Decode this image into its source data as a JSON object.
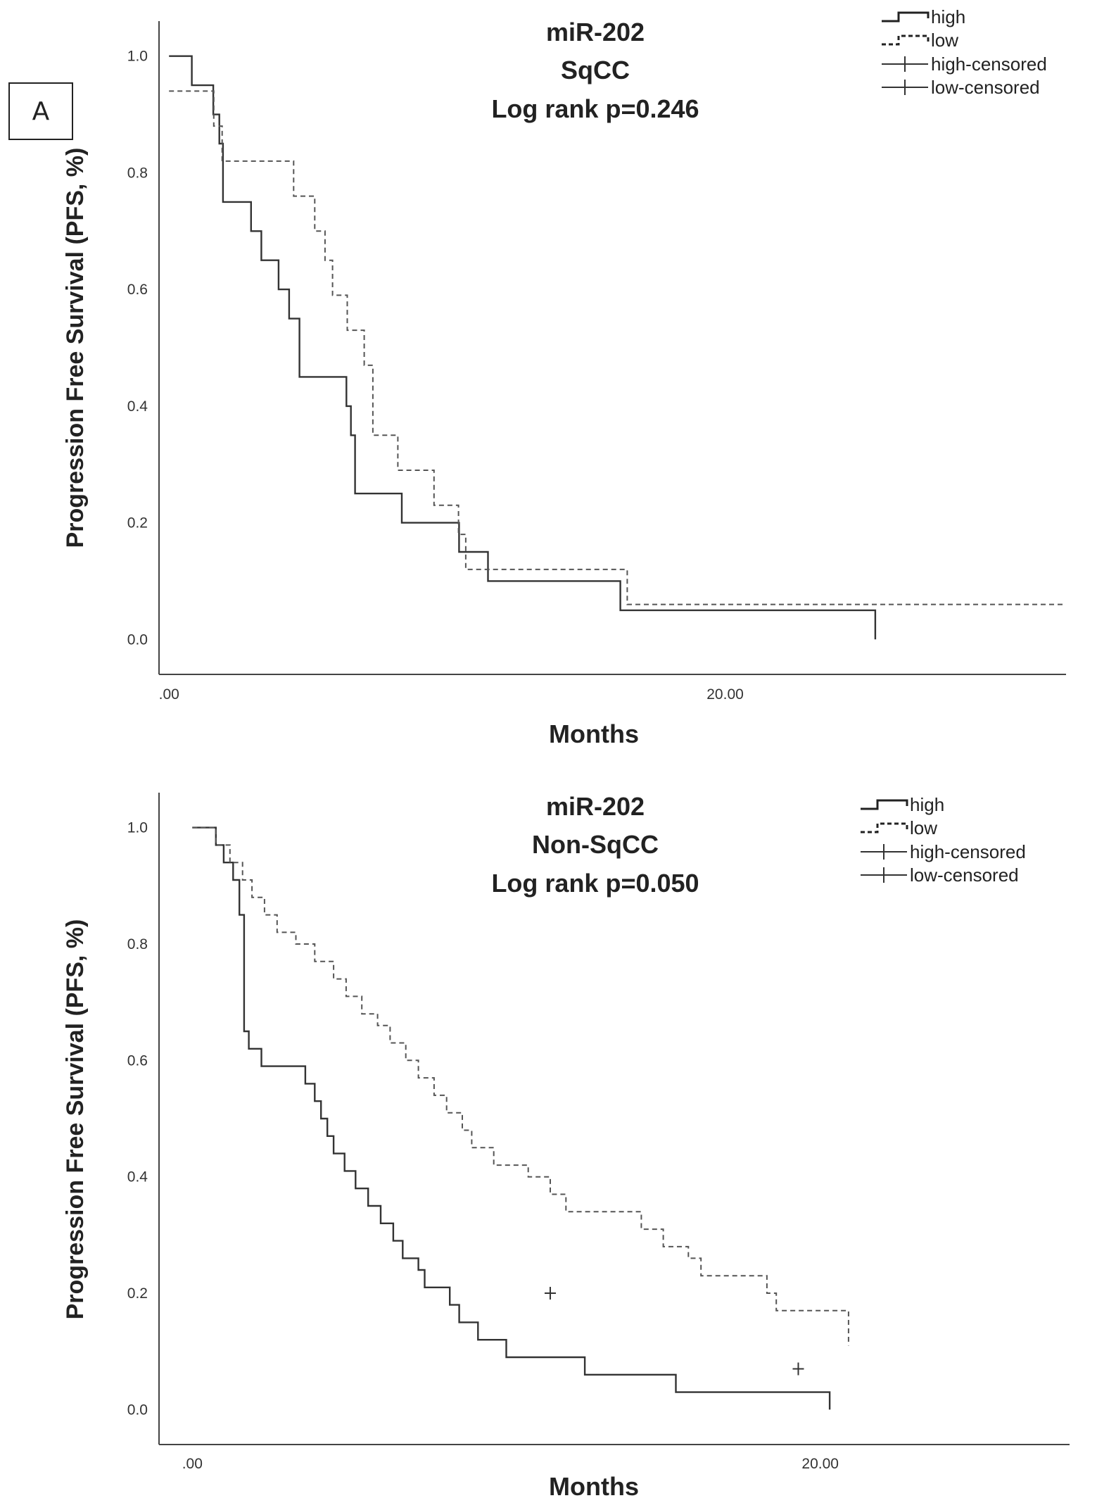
{
  "panel_label": "A",
  "chart_data": [
    {
      "type": "line",
      "subtype": "kaplan-meier",
      "title_lines": [
        "miR-202",
        "SqCC",
        "Log rank p=0.246"
      ],
      "xlabel": "Months",
      "ylabel": "Progression Free Survival (PFS, %)",
      "xlim": [
        -0.36,
        32.26
      ],
      "ylim": [
        -0.06,
        1.06
      ],
      "x_ticks": [
        {
          "value": 0,
          "label": ".00"
        },
        {
          "value": 20,
          "label": "20.00"
        }
      ],
      "y_ticks": [
        {
          "value": 0.0,
          "label": "0.0"
        },
        {
          "value": 0.2,
          "label": "0.2"
        },
        {
          "value": 0.4,
          "label": "0.4"
        },
        {
          "value": 0.6,
          "label": "0.6"
        },
        {
          "value": 0.8,
          "label": "0.8"
        },
        {
          "value": 1.0,
          "label": "1.0"
        }
      ],
      "legend": [
        {
          "label": "high",
          "style": "solid"
        },
        {
          "label": "low",
          "style": "dashed"
        },
        {
          "label": "high-censored",
          "style": "censor"
        },
        {
          "label": "low-censored",
          "style": "censor"
        }
      ],
      "legend_position": "top-right",
      "series": [
        {
          "name": "high",
          "style": "solid",
          "x": [
            0,
            0.82,
            1.59,
            1.81,
            1.94,
            2.95,
            3.32,
            3.94,
            4.32,
            4.69,
            6.38,
            6.54,
            6.69,
            8.37,
            9.41,
            10.43,
            11.47,
            16.23,
            25.4,
            25.4
          ],
          "y": [
            1.0,
            0.95,
            0.9,
            0.85,
            0.75,
            0.7,
            0.65,
            0.6,
            0.55,
            0.45,
            0.4,
            0.35,
            0.25,
            0.2,
            0.2,
            0.15,
            0.1,
            0.05,
            0.05,
            0.0
          ]
        },
        {
          "name": "low",
          "style": "dashed",
          "x": [
            0,
            1.61,
            1.91,
            4.48,
            5.24,
            5.61,
            5.88,
            6.41,
            7.02,
            7.33,
            8.23,
            9.53,
            10.41,
            10.67,
            16.48,
            32.2
          ],
          "y": [
            0.94,
            0.88,
            0.82,
            0.76,
            0.7,
            0.65,
            0.59,
            0.53,
            0.47,
            0.35,
            0.29,
            0.23,
            0.18,
            0.12,
            0.06,
            0.06
          ]
        }
      ],
      "censored": []
    },
    {
      "type": "line",
      "subtype": "kaplan-meier",
      "title_lines": [
        "miR-202",
        "Non-SqCC",
        "Log rank p=0.050"
      ],
      "xlabel": "Months",
      "ylabel": "Progression Free Survival (PFS, %)",
      "xlim": [
        -1.06,
        27.94
      ],
      "ylim": [
        -0.06,
        1.06
      ],
      "x_ticks": [
        {
          "value": 0,
          "label": ".00"
        },
        {
          "value": 20,
          "label": "20.00"
        }
      ],
      "y_ticks": [
        {
          "value": 0.0,
          "label": "0.0"
        },
        {
          "value": 0.2,
          "label": "0.2"
        },
        {
          "value": 0.4,
          "label": "0.4"
        },
        {
          "value": 0.6,
          "label": "0.6"
        },
        {
          "value": 0.8,
          "label": "0.8"
        },
        {
          "value": 1.0,
          "label": "1.0"
        }
      ],
      "legend": [
        {
          "label": "high",
          "style": "solid"
        },
        {
          "label": "low",
          "style": "dashed"
        },
        {
          "label": "high-censored",
          "style": "censor"
        },
        {
          "label": "low-censored",
          "style": "censor"
        }
      ],
      "legend_position": "top-right",
      "series": [
        {
          "name": "high",
          "style": "solid",
          "x": [
            0,
            0.75,
            1.0,
            1.3,
            1.5,
            1.65,
            1.8,
            2.2,
            3.6,
            3.9,
            4.1,
            4.3,
            4.5,
            4.85,
            5.2,
            5.6,
            6.0,
            6.4,
            6.7,
            7.2,
            7.4,
            8.2,
            8.5,
            9.1,
            10.0,
            11.5,
            12.5,
            15.4,
            20.3,
            20.3
          ],
          "y": [
            1.0,
            0.97,
            0.94,
            0.91,
            0.85,
            0.65,
            0.62,
            0.59,
            0.56,
            0.53,
            0.5,
            0.47,
            0.44,
            0.41,
            0.38,
            0.35,
            0.32,
            0.29,
            0.26,
            0.24,
            0.21,
            0.18,
            0.15,
            0.12,
            0.09,
            0.09,
            0.06,
            0.03,
            0.03,
            0.0
          ]
        },
        {
          "name": "low",
          "style": "dashed",
          "x": [
            0,
            0.75,
            1.2,
            1.6,
            1.9,
            2.3,
            2.7,
            3.3,
            3.9,
            4.5,
            4.9,
            5.4,
            5.9,
            6.3,
            6.8,
            7.2,
            7.7,
            8.1,
            8.6,
            8.9,
            9.6,
            10.7,
            11.4,
            11.9,
            14.3,
            15.0,
            15.8,
            16.2,
            18.3,
            18.6,
            20.9,
            20.9
          ],
          "y": [
            1.0,
            0.97,
            0.94,
            0.91,
            0.88,
            0.85,
            0.82,
            0.8,
            0.77,
            0.74,
            0.71,
            0.68,
            0.66,
            0.63,
            0.6,
            0.57,
            0.54,
            0.51,
            0.48,
            0.45,
            0.42,
            0.4,
            0.37,
            0.34,
            0.31,
            0.28,
            0.26,
            0.23,
            0.2,
            0.17,
            0.14,
            0.11
          ]
        }
      ],
      "censored": [
        {
          "series": "low",
          "x": 11.4,
          "y": 0.2
        },
        {
          "series": "low",
          "x": 19.3,
          "y": 0.07
        }
      ]
    }
  ]
}
